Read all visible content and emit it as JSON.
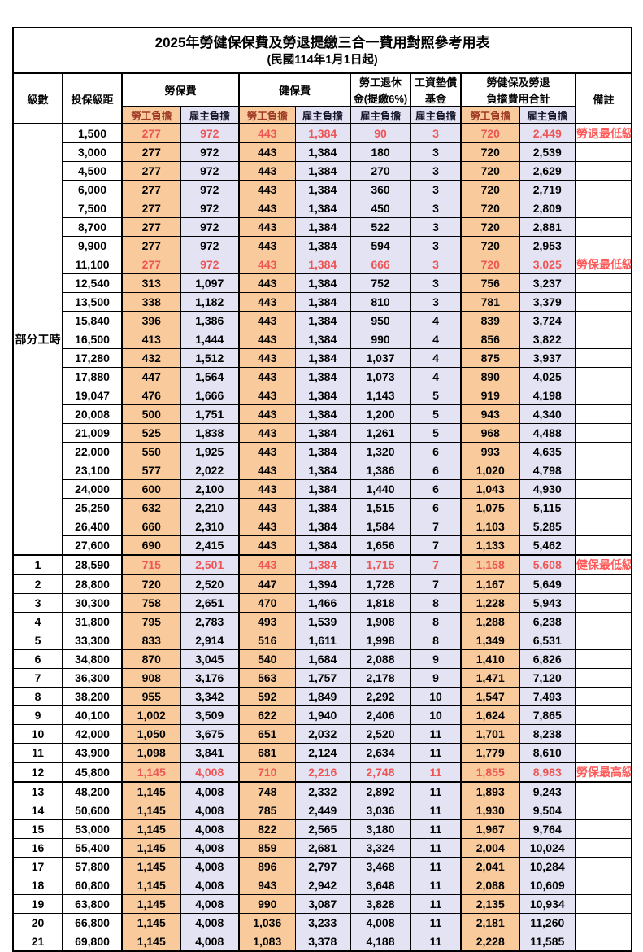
{
  "title": "2025年勞健保保費及勞退提繳三合一費用對照參考用表",
  "subtitle": "(民國114年1月1日起)",
  "header": {
    "level": "級數",
    "bracket": "投保級距",
    "labor_insurance": "勞保費",
    "health_insurance": "健保費",
    "pension_line1": "勞工退休",
    "pension_line2": "金(提繳6%)",
    "wage_fund_line1": "工資墊償",
    "wage_fund_line2": "基金",
    "total_line1": "勞健保及勞退",
    "total_line2": "負擔費用合計",
    "remark": "備註",
    "worker_label": "勞工負擔",
    "employer_label": "雇主負擔"
  },
  "part_time_label": "部分工時",
  "colors": {
    "worker_bg": "#F9CB9C",
    "employer_bg": "#E4E3F3",
    "highlight_text": "#EE5555",
    "remark_text": "#FF5A5A"
  },
  "rows": [
    {
      "level": "",
      "bracket": "1,500",
      "values": [
        "277",
        "972",
        "443",
        "1,384",
        "90",
        "3",
        "720",
        "2,449"
      ],
      "remark": "勞退最低級距",
      "red": true,
      "thick": false
    },
    {
      "level": "",
      "bracket": "3,000",
      "values": [
        "277",
        "972",
        "443",
        "1,384",
        "180",
        "3",
        "720",
        "2,539"
      ],
      "remark": "",
      "red": false,
      "thick": false
    },
    {
      "level": "",
      "bracket": "4,500",
      "values": [
        "277",
        "972",
        "443",
        "1,384",
        "270",
        "3",
        "720",
        "2,629"
      ],
      "remark": "",
      "red": false,
      "thick": false
    },
    {
      "level": "",
      "bracket": "6,000",
      "values": [
        "277",
        "972",
        "443",
        "1,384",
        "360",
        "3",
        "720",
        "2,719"
      ],
      "remark": "",
      "red": false,
      "thick": false
    },
    {
      "level": "",
      "bracket": "7,500",
      "values": [
        "277",
        "972",
        "443",
        "1,384",
        "450",
        "3",
        "720",
        "2,809"
      ],
      "remark": "",
      "red": false,
      "thick": false
    },
    {
      "level": "",
      "bracket": "8,700",
      "values": [
        "277",
        "972",
        "443",
        "1,384",
        "522",
        "3",
        "720",
        "2,881"
      ],
      "remark": "",
      "red": false,
      "thick": false
    },
    {
      "level": "",
      "bracket": "9,900",
      "values": [
        "277",
        "972",
        "443",
        "1,384",
        "594",
        "3",
        "720",
        "2,953"
      ],
      "remark": "",
      "red": false,
      "thick": false
    },
    {
      "level": "",
      "bracket": "11,100",
      "values": [
        "277",
        "972",
        "443",
        "1,384",
        "666",
        "3",
        "720",
        "3,025"
      ],
      "remark": "勞保最低級距",
      "red": true,
      "thick": false
    },
    {
      "level": "",
      "bracket": "12,540",
      "values": [
        "313",
        "1,097",
        "443",
        "1,384",
        "752",
        "3",
        "756",
        "3,237"
      ],
      "remark": "",
      "red": false,
      "thick": false
    },
    {
      "level": "",
      "bracket": "13,500",
      "values": [
        "338",
        "1,182",
        "443",
        "1,384",
        "810",
        "3",
        "781",
        "3,379"
      ],
      "remark": "",
      "red": false,
      "thick": false
    },
    {
      "level": "",
      "bracket": "15,840",
      "values": [
        "396",
        "1,386",
        "443",
        "1,384",
        "950",
        "4",
        "839",
        "3,724"
      ],
      "remark": "",
      "red": false,
      "thick": false
    },
    {
      "level": "",
      "bracket": "16,500",
      "values": [
        "413",
        "1,444",
        "443",
        "1,384",
        "990",
        "4",
        "856",
        "3,822"
      ],
      "remark": "",
      "red": false,
      "thick": false
    },
    {
      "level": "",
      "bracket": "17,280",
      "values": [
        "432",
        "1,512",
        "443",
        "1,384",
        "1,037",
        "4",
        "875",
        "3,937"
      ],
      "remark": "",
      "red": false,
      "thick": false
    },
    {
      "level": "",
      "bracket": "17,880",
      "values": [
        "447",
        "1,564",
        "443",
        "1,384",
        "1,073",
        "4",
        "890",
        "4,025"
      ],
      "remark": "",
      "red": false,
      "thick": false
    },
    {
      "level": "",
      "bracket": "19,047",
      "values": [
        "476",
        "1,666",
        "443",
        "1,384",
        "1,143",
        "5",
        "919",
        "4,198"
      ],
      "remark": "",
      "red": false,
      "thick": false
    },
    {
      "level": "",
      "bracket": "20,008",
      "values": [
        "500",
        "1,751",
        "443",
        "1,384",
        "1,200",
        "5",
        "943",
        "4,340"
      ],
      "remark": "",
      "red": false,
      "thick": false
    },
    {
      "level": "",
      "bracket": "21,009",
      "values": [
        "525",
        "1,838",
        "443",
        "1,384",
        "1,261",
        "5",
        "968",
        "4,488"
      ],
      "remark": "",
      "red": false,
      "thick": false
    },
    {
      "level": "",
      "bracket": "22,000",
      "values": [
        "550",
        "1,925",
        "443",
        "1,384",
        "1,320",
        "6",
        "993",
        "4,635"
      ],
      "remark": "",
      "red": false,
      "thick": false
    },
    {
      "level": "",
      "bracket": "23,100",
      "values": [
        "577",
        "2,022",
        "443",
        "1,384",
        "1,386",
        "6",
        "1,020",
        "4,798"
      ],
      "remark": "",
      "red": false,
      "thick": false
    },
    {
      "level": "",
      "bracket": "24,000",
      "values": [
        "600",
        "2,100",
        "443",
        "1,384",
        "1,440",
        "6",
        "1,043",
        "4,930"
      ],
      "remark": "",
      "red": false,
      "thick": false
    },
    {
      "level": "",
      "bracket": "25,250",
      "values": [
        "632",
        "2,210",
        "443",
        "1,384",
        "1,515",
        "6",
        "1,075",
        "5,115"
      ],
      "remark": "",
      "red": false,
      "thick": false
    },
    {
      "level": "",
      "bracket": "26,400",
      "values": [
        "660",
        "2,310",
        "443",
        "1,384",
        "1,584",
        "7",
        "1,103",
        "5,285"
      ],
      "remark": "",
      "red": false,
      "thick": false
    },
    {
      "level": "",
      "bracket": "27,600",
      "values": [
        "690",
        "2,415",
        "443",
        "1,384",
        "1,656",
        "7",
        "1,133",
        "5,462"
      ],
      "remark": "",
      "red": false,
      "thick": false
    },
    {
      "level": "1",
      "bracket": "28,590",
      "values": [
        "715",
        "2,501",
        "443",
        "1,384",
        "1,715",
        "7",
        "1,158",
        "5,608"
      ],
      "remark": "健保最低級距",
      "red": true,
      "thick": true
    },
    {
      "level": "2",
      "bracket": "28,800",
      "values": [
        "720",
        "2,520",
        "447",
        "1,394",
        "1,728",
        "7",
        "1,167",
        "5,649"
      ],
      "remark": "",
      "red": false,
      "thick": false
    },
    {
      "level": "3",
      "bracket": "30,300",
      "values": [
        "758",
        "2,651",
        "470",
        "1,466",
        "1,818",
        "8",
        "1,228",
        "5,943"
      ],
      "remark": "",
      "red": false,
      "thick": false
    },
    {
      "level": "4",
      "bracket": "31,800",
      "values": [
        "795",
        "2,783",
        "493",
        "1,539",
        "1,908",
        "8",
        "1,288",
        "6,238"
      ],
      "remark": "",
      "red": false,
      "thick": false
    },
    {
      "level": "5",
      "bracket": "33,300",
      "values": [
        "833",
        "2,914",
        "516",
        "1,611",
        "1,998",
        "8",
        "1,349",
        "6,531"
      ],
      "remark": "",
      "red": false,
      "thick": false
    },
    {
      "level": "6",
      "bracket": "34,800",
      "values": [
        "870",
        "3,045",
        "540",
        "1,684",
        "2,088",
        "9",
        "1,410",
        "6,826"
      ],
      "remark": "",
      "red": false,
      "thick": false
    },
    {
      "level": "7",
      "bracket": "36,300",
      "values": [
        "908",
        "3,176",
        "563",
        "1,757",
        "2,178",
        "9",
        "1,471",
        "7,120"
      ],
      "remark": "",
      "red": false,
      "thick": false
    },
    {
      "level": "8",
      "bracket": "38,200",
      "values": [
        "955",
        "3,342",
        "592",
        "1,849",
        "2,292",
        "10",
        "1,547",
        "7,493"
      ],
      "remark": "",
      "red": false,
      "thick": false
    },
    {
      "level": "9",
      "bracket": "40,100",
      "values": [
        "1,002",
        "3,509",
        "622",
        "1,940",
        "2,406",
        "10",
        "1,624",
        "7,865"
      ],
      "remark": "",
      "red": false,
      "thick": false
    },
    {
      "level": "10",
      "bracket": "42,000",
      "values": [
        "1,050",
        "3,675",
        "651",
        "2,032",
        "2,520",
        "11",
        "1,701",
        "8,238"
      ],
      "remark": "",
      "red": false,
      "thick": false
    },
    {
      "level": "11",
      "bracket": "43,900",
      "values": [
        "1,098",
        "3,841",
        "681",
        "2,124",
        "2,634",
        "11",
        "1,779",
        "8,610"
      ],
      "remark": "",
      "red": false,
      "thick": false
    },
    {
      "level": "12",
      "bracket": "45,800",
      "values": [
        "1,145",
        "4,008",
        "710",
        "2,216",
        "2,748",
        "11",
        "1,855",
        "8,983"
      ],
      "remark": "勞保最高級距",
      "red": true,
      "thick": true
    },
    {
      "level": "13",
      "bracket": "48,200",
      "values": [
        "1,145",
        "4,008",
        "748",
        "2,332",
        "2,892",
        "11",
        "1,893",
        "9,243"
      ],
      "remark": "",
      "red": false,
      "thick": false
    },
    {
      "level": "14",
      "bracket": "50,600",
      "values": [
        "1,145",
        "4,008",
        "785",
        "2,449",
        "3,036",
        "11",
        "1,930",
        "9,504"
      ],
      "remark": "",
      "red": false,
      "thick": false
    },
    {
      "level": "15",
      "bracket": "53,000",
      "values": [
        "1,145",
        "4,008",
        "822",
        "2,565",
        "3,180",
        "11",
        "1,967",
        "9,764"
      ],
      "remark": "",
      "red": false,
      "thick": false
    },
    {
      "level": "16",
      "bracket": "55,400",
      "values": [
        "1,145",
        "4,008",
        "859",
        "2,681",
        "3,324",
        "11",
        "2,004",
        "10,024"
      ],
      "remark": "",
      "red": false,
      "thick": false
    },
    {
      "level": "17",
      "bracket": "57,800",
      "values": [
        "1,145",
        "4,008",
        "896",
        "2,797",
        "3,468",
        "11",
        "2,041",
        "10,284"
      ],
      "remark": "",
      "red": false,
      "thick": false
    },
    {
      "level": "18",
      "bracket": "60,800",
      "values": [
        "1,145",
        "4,008",
        "943",
        "2,942",
        "3,648",
        "11",
        "2,088",
        "10,609"
      ],
      "remark": "",
      "red": false,
      "thick": false
    },
    {
      "level": "19",
      "bracket": "63,800",
      "values": [
        "1,145",
        "4,008",
        "990",
        "3,087",
        "3,828",
        "11",
        "2,135",
        "10,934"
      ],
      "remark": "",
      "red": false,
      "thick": false
    },
    {
      "level": "20",
      "bracket": "66,800",
      "values": [
        "1,145",
        "4,008",
        "1,036",
        "3,233",
        "4,008",
        "11",
        "2,181",
        "11,260"
      ],
      "remark": "",
      "red": false,
      "thick": false
    },
    {
      "level": "21",
      "bracket": "69,800",
      "values": [
        "1,145",
        "4,008",
        "1,083",
        "3,378",
        "4,188",
        "11",
        "2,228",
        "11,585"
      ],
      "remark": "",
      "red": false,
      "thick": false
    }
  ]
}
